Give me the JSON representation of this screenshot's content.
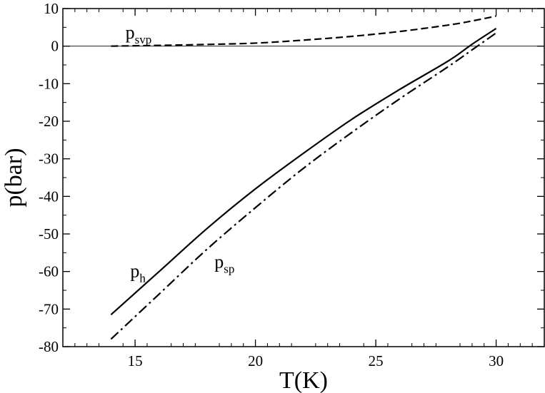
{
  "chart_data": {
    "type": "line",
    "title": "",
    "xlabel": "T(K)",
    "ylabel": "p(bar)",
    "xlim": [
      12,
      32
    ],
    "ylim": [
      -80,
      10
    ],
    "xticks": [
      15,
      20,
      25,
      30
    ],
    "xtick_labels": [
      "15",
      "20",
      "25",
      "30"
    ],
    "yticks": [
      10,
      0,
      -10,
      -20,
      -30,
      -40,
      -50,
      -60,
      -70,
      -80
    ],
    "ytick_labels": [
      "10",
      "0",
      "-10",
      "-20",
      "-30",
      "-40",
      "-50",
      "-60",
      "-70",
      "-80"
    ],
    "grid": false,
    "legend": "none",
    "reference_line": {
      "y": 0
    },
    "colors": {
      "line": "#000000",
      "background": "#ffffff"
    },
    "series": [
      {
        "name": "p_svp",
        "style": "dashed",
        "x": [
          14,
          16,
          18,
          20,
          22,
          24,
          26,
          28,
          29,
          30
        ],
        "y": [
          0.0,
          0.2,
          0.45,
          0.8,
          1.6,
          2.6,
          3.9,
          5.6,
          6.7,
          8.0
        ]
      },
      {
        "name": "p_h",
        "style": "solid",
        "x": [
          14,
          16,
          18,
          20,
          22,
          24,
          26,
          28,
          29,
          30
        ],
        "y": [
          -71.5,
          -60.0,
          -48.5,
          -38.0,
          -28.5,
          -19.5,
          -11.5,
          -4.0,
          0.5,
          4.7
        ]
      },
      {
        "name": "p_sp",
        "style": "dashdot",
        "x": [
          14,
          16,
          18,
          20,
          22,
          24,
          26,
          28,
          29,
          30
        ],
        "y": [
          -78.0,
          -66.0,
          -54.0,
          -43.0,
          -32.5,
          -23.0,
          -14.0,
          -5.5,
          -1.0,
          3.5
        ]
      }
    ],
    "annotations": [
      {
        "base": "p",
        "sub": "svp",
        "x": 14.6,
        "y": 2.0
      },
      {
        "base": "p",
        "sub": "h",
        "x": 14.8,
        "y": -61.5
      },
      {
        "base": "p",
        "sub": "sp",
        "x": 18.3,
        "y": -59.0
      }
    ]
  }
}
